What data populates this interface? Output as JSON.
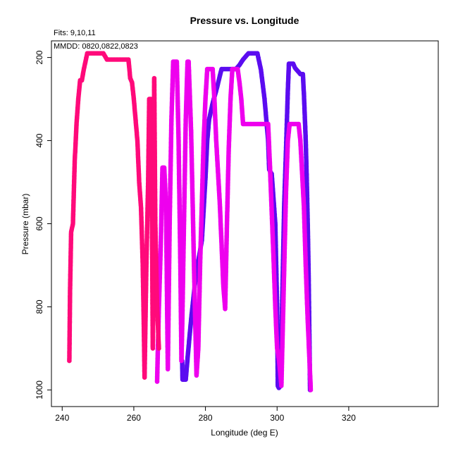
{
  "chart_data": {
    "type": "scatter",
    "title": "Pressure vs. Longitude",
    "subtitle_fits": "Fits: 9,10,11",
    "annotation_mmdd": "MMDD: 0820,0822,0823",
    "xlabel": "Longitude (deg E)",
    "ylabel": "Pressure (mbar)",
    "xlim": [
      237,
      345
    ],
    "ylim": [
      1040,
      160
    ],
    "y_reversed": true,
    "xticks": [
      240,
      260,
      280,
      300,
      320
    ],
    "yticks": [
      200,
      400,
      600,
      800,
      1000
    ],
    "grid": false,
    "legend": "none",
    "series": [
      {
        "color": "#5b0cf0",
        "points": [
          [
            273.5,
            930
          ],
          [
            273.6,
            975
          ],
          [
            274.5,
            975
          ],
          [
            275.2,
            905
          ],
          [
            276.0,
            830
          ],
          [
            277.0,
            750
          ],
          [
            278.0,
            690
          ],
          [
            279.0,
            640
          ],
          [
            280.0,
            490
          ],
          [
            280.5,
            400
          ],
          [
            281.0,
            350
          ],
          [
            282.0,
            310
          ],
          [
            283.0,
            280
          ],
          [
            284.0,
            245
          ],
          [
            284.5,
            228
          ],
          [
            287.0,
            228
          ],
          [
            288.5,
            228
          ],
          [
            289.5,
            218
          ],
          [
            290.5,
            205
          ],
          [
            292.0,
            190
          ],
          [
            294.5,
            190
          ],
          [
            295.5,
            230
          ],
          [
            296.5,
            300
          ],
          [
            297.5,
            400
          ],
          [
            297.8,
            470
          ],
          [
            298.5,
            480
          ],
          [
            299.5,
            600
          ],
          [
            300.0,
            800
          ],
          [
            300.2,
            990
          ],
          [
            300.5,
            995
          ],
          [
            301.0,
            990
          ],
          [
            301.3,
            840
          ],
          [
            302.0,
            550
          ],
          [
            302.5,
            420
          ],
          [
            303.0,
            280
          ],
          [
            303.3,
            215
          ],
          [
            304.5,
            215
          ],
          [
            305.0,
            225
          ],
          [
            306.0,
            235
          ],
          [
            306.5,
            240
          ],
          [
            307.2,
            240
          ],
          [
            307.5,
            290
          ],
          [
            308.0,
            400
          ],
          [
            308.3,
            500
          ],
          [
            308.6,
            620
          ],
          [
            308.8,
            720
          ],
          [
            309.0,
            860
          ],
          [
            309.2,
            1000
          ]
        ]
      },
      {
        "color": "#ee00ee",
        "points": [
          [
            266.5,
            980
          ],
          [
            267.0,
            800
          ],
          [
            267.5,
            660
          ],
          [
            268.0,
            465
          ],
          [
            268.5,
            465
          ],
          [
            269.0,
            560
          ],
          [
            269.3,
            800
          ],
          [
            269.5,
            950
          ],
          [
            270.0,
            600
          ],
          [
            270.5,
            350
          ],
          [
            271.0,
            210
          ],
          [
            272.0,
            210
          ],
          [
            272.5,
            400
          ],
          [
            273.0,
            700
          ],
          [
            273.3,
            930
          ],
          [
            273.5,
            850
          ],
          [
            274.0,
            600
          ],
          [
            274.5,
            350
          ],
          [
            275.0,
            210
          ],
          [
            275.3,
            210
          ],
          [
            276.0,
            380
          ],
          [
            276.5,
            580
          ],
          [
            277.0,
            780
          ],
          [
            277.5,
            965
          ],
          [
            278.0,
            900
          ],
          [
            278.5,
            700
          ],
          [
            279.0,
            550
          ],
          [
            279.5,
            400
          ],
          [
            280.0,
            300
          ],
          [
            280.5,
            228
          ],
          [
            282.0,
            228
          ],
          [
            282.5,
            300
          ],
          [
            283.0,
            400
          ],
          [
            284.0,
            550
          ],
          [
            285.0,
            750
          ],
          [
            285.5,
            805
          ],
          [
            286.0,
            600
          ],
          [
            286.5,
            420
          ],
          [
            287.0,
            300
          ],
          [
            287.5,
            228
          ],
          [
            289.0,
            228
          ],
          [
            289.5,
            260
          ],
          [
            290.0,
            300
          ],
          [
            290.5,
            360
          ],
          [
            295.0,
            360
          ],
          [
            296.5,
            360
          ],
          [
            297.5,
            360
          ],
          [
            298.0,
            460
          ],
          [
            298.5,
            570
          ],
          [
            299.0,
            680
          ],
          [
            299.5,
            800
          ],
          [
            300.0,
            900
          ],
          [
            300.5,
            925
          ],
          [
            301.2,
            990
          ],
          [
            302.0,
            700
          ],
          [
            302.5,
            520
          ],
          [
            303.0,
            400
          ],
          [
            303.5,
            360
          ],
          [
            306.0,
            360
          ],
          [
            306.5,
            400
          ],
          [
            307.5,
            560
          ],
          [
            308.0,
            700
          ],
          [
            308.5,
            820
          ],
          [
            309.0,
            920
          ],
          [
            309.4,
            1000
          ]
        ]
      },
      {
        "color": "#ff0a7a",
        "points": [
          [
            242.0,
            930
          ],
          [
            242.2,
            760
          ],
          [
            242.5,
            620
          ],
          [
            243.0,
            600
          ],
          [
            243.5,
            450
          ],
          [
            244.0,
            360
          ],
          [
            244.5,
            300
          ],
          [
            245.0,
            255
          ],
          [
            245.5,
            255
          ],
          [
            246.0,
            230
          ],
          [
            247.0,
            190
          ],
          [
            251.5,
            190
          ],
          [
            252.5,
            205
          ],
          [
            258.5,
            205
          ],
          [
            259.0,
            250
          ],
          [
            259.5,
            260
          ],
          [
            260.0,
            300
          ],
          [
            261.0,
            400
          ],
          [
            261.5,
            500
          ],
          [
            262.0,
            560
          ],
          [
            262.5,
            700
          ],
          [
            262.8,
            850
          ],
          [
            263.0,
            970
          ],
          [
            263.5,
            700
          ],
          [
            264.0,
            500
          ],
          [
            264.3,
            300
          ],
          [
            264.8,
            300
          ],
          [
            265.0,
            500
          ],
          [
            265.3,
            900
          ],
          [
            265.5,
            700
          ],
          [
            265.7,
            250
          ],
          [
            266.0,
            600
          ],
          [
            266.5,
            800
          ],
          [
            267.0,
            900
          ]
        ]
      }
    ]
  }
}
